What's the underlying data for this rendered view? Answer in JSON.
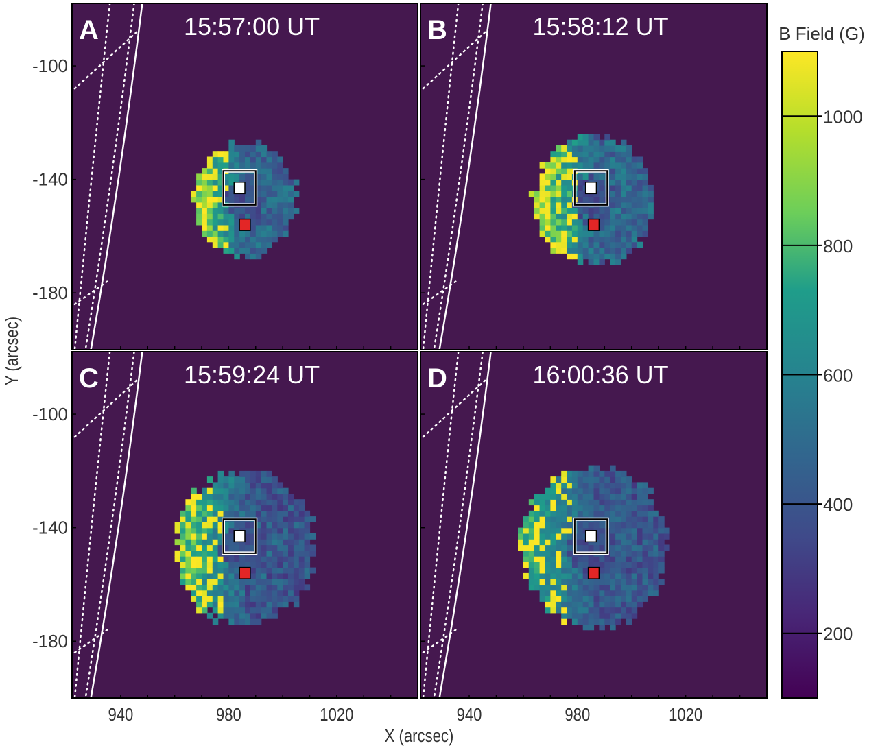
{
  "chart_data": {
    "type": "heatmap",
    "title": "",
    "xlabel": "X (arcsec)",
    "ylabel": "Y (arcsec)",
    "xlim": [
      922,
      1050
    ],
    "ylim": [
      -200,
      -78
    ],
    "x_ticks": [
      940,
      980,
      1020
    ],
    "x_tick_labels": [
      "940",
      "980",
      "1020"
    ],
    "y_ticks": [
      -100,
      -140,
      -180
    ],
    "y_tick_labels": [
      "-100",
      "-140",
      "-180"
    ],
    "colorbar": {
      "label": "B Field (G)",
      "range": [
        100,
        1100
      ],
      "ticks": [
        200,
        400,
        600,
        800,
        1000
      ],
      "tick_labels": [
        "200",
        "400",
        "600",
        "800",
        "1000"
      ],
      "colormap": "viridis"
    },
    "panels": [
      {
        "letter": "A",
        "time": "15:57:00 UT",
        "spread": 0.8,
        "strength": 1.0,
        "box_center": [
          984,
          -143
        ],
        "box_marker": [
          984,
          -143
        ],
        "red_marker": [
          986,
          -156
        ]
      },
      {
        "letter": "B",
        "time": "15:58:12 UT",
        "spread": 0.95,
        "strength": 1.05,
        "box_center": [
          985,
          -143
        ],
        "box_marker": [
          985,
          -143
        ],
        "red_marker": [
          986,
          -156
        ]
      },
      {
        "letter": "C",
        "time": "15:59:24 UT",
        "spread": 1.15,
        "strength": 0.85,
        "box_center": [
          984,
          -143
        ],
        "box_marker": [
          984,
          -143
        ],
        "red_marker": [
          986,
          -156
        ]
      },
      {
        "letter": "D",
        "time": "16:00:36 UT",
        "spread": 1.2,
        "strength": 0.7,
        "box_center": [
          985,
          -143
        ],
        "box_marker": [
          985,
          -143
        ],
        "red_marker": [
          986,
          -156
        ]
      }
    ],
    "background_value": 120
  },
  "colors": {
    "background": "#45184f",
    "frame": "#000000",
    "marker_white": "#ffffff",
    "marker_red": "#e32626",
    "text": "#333333"
  }
}
